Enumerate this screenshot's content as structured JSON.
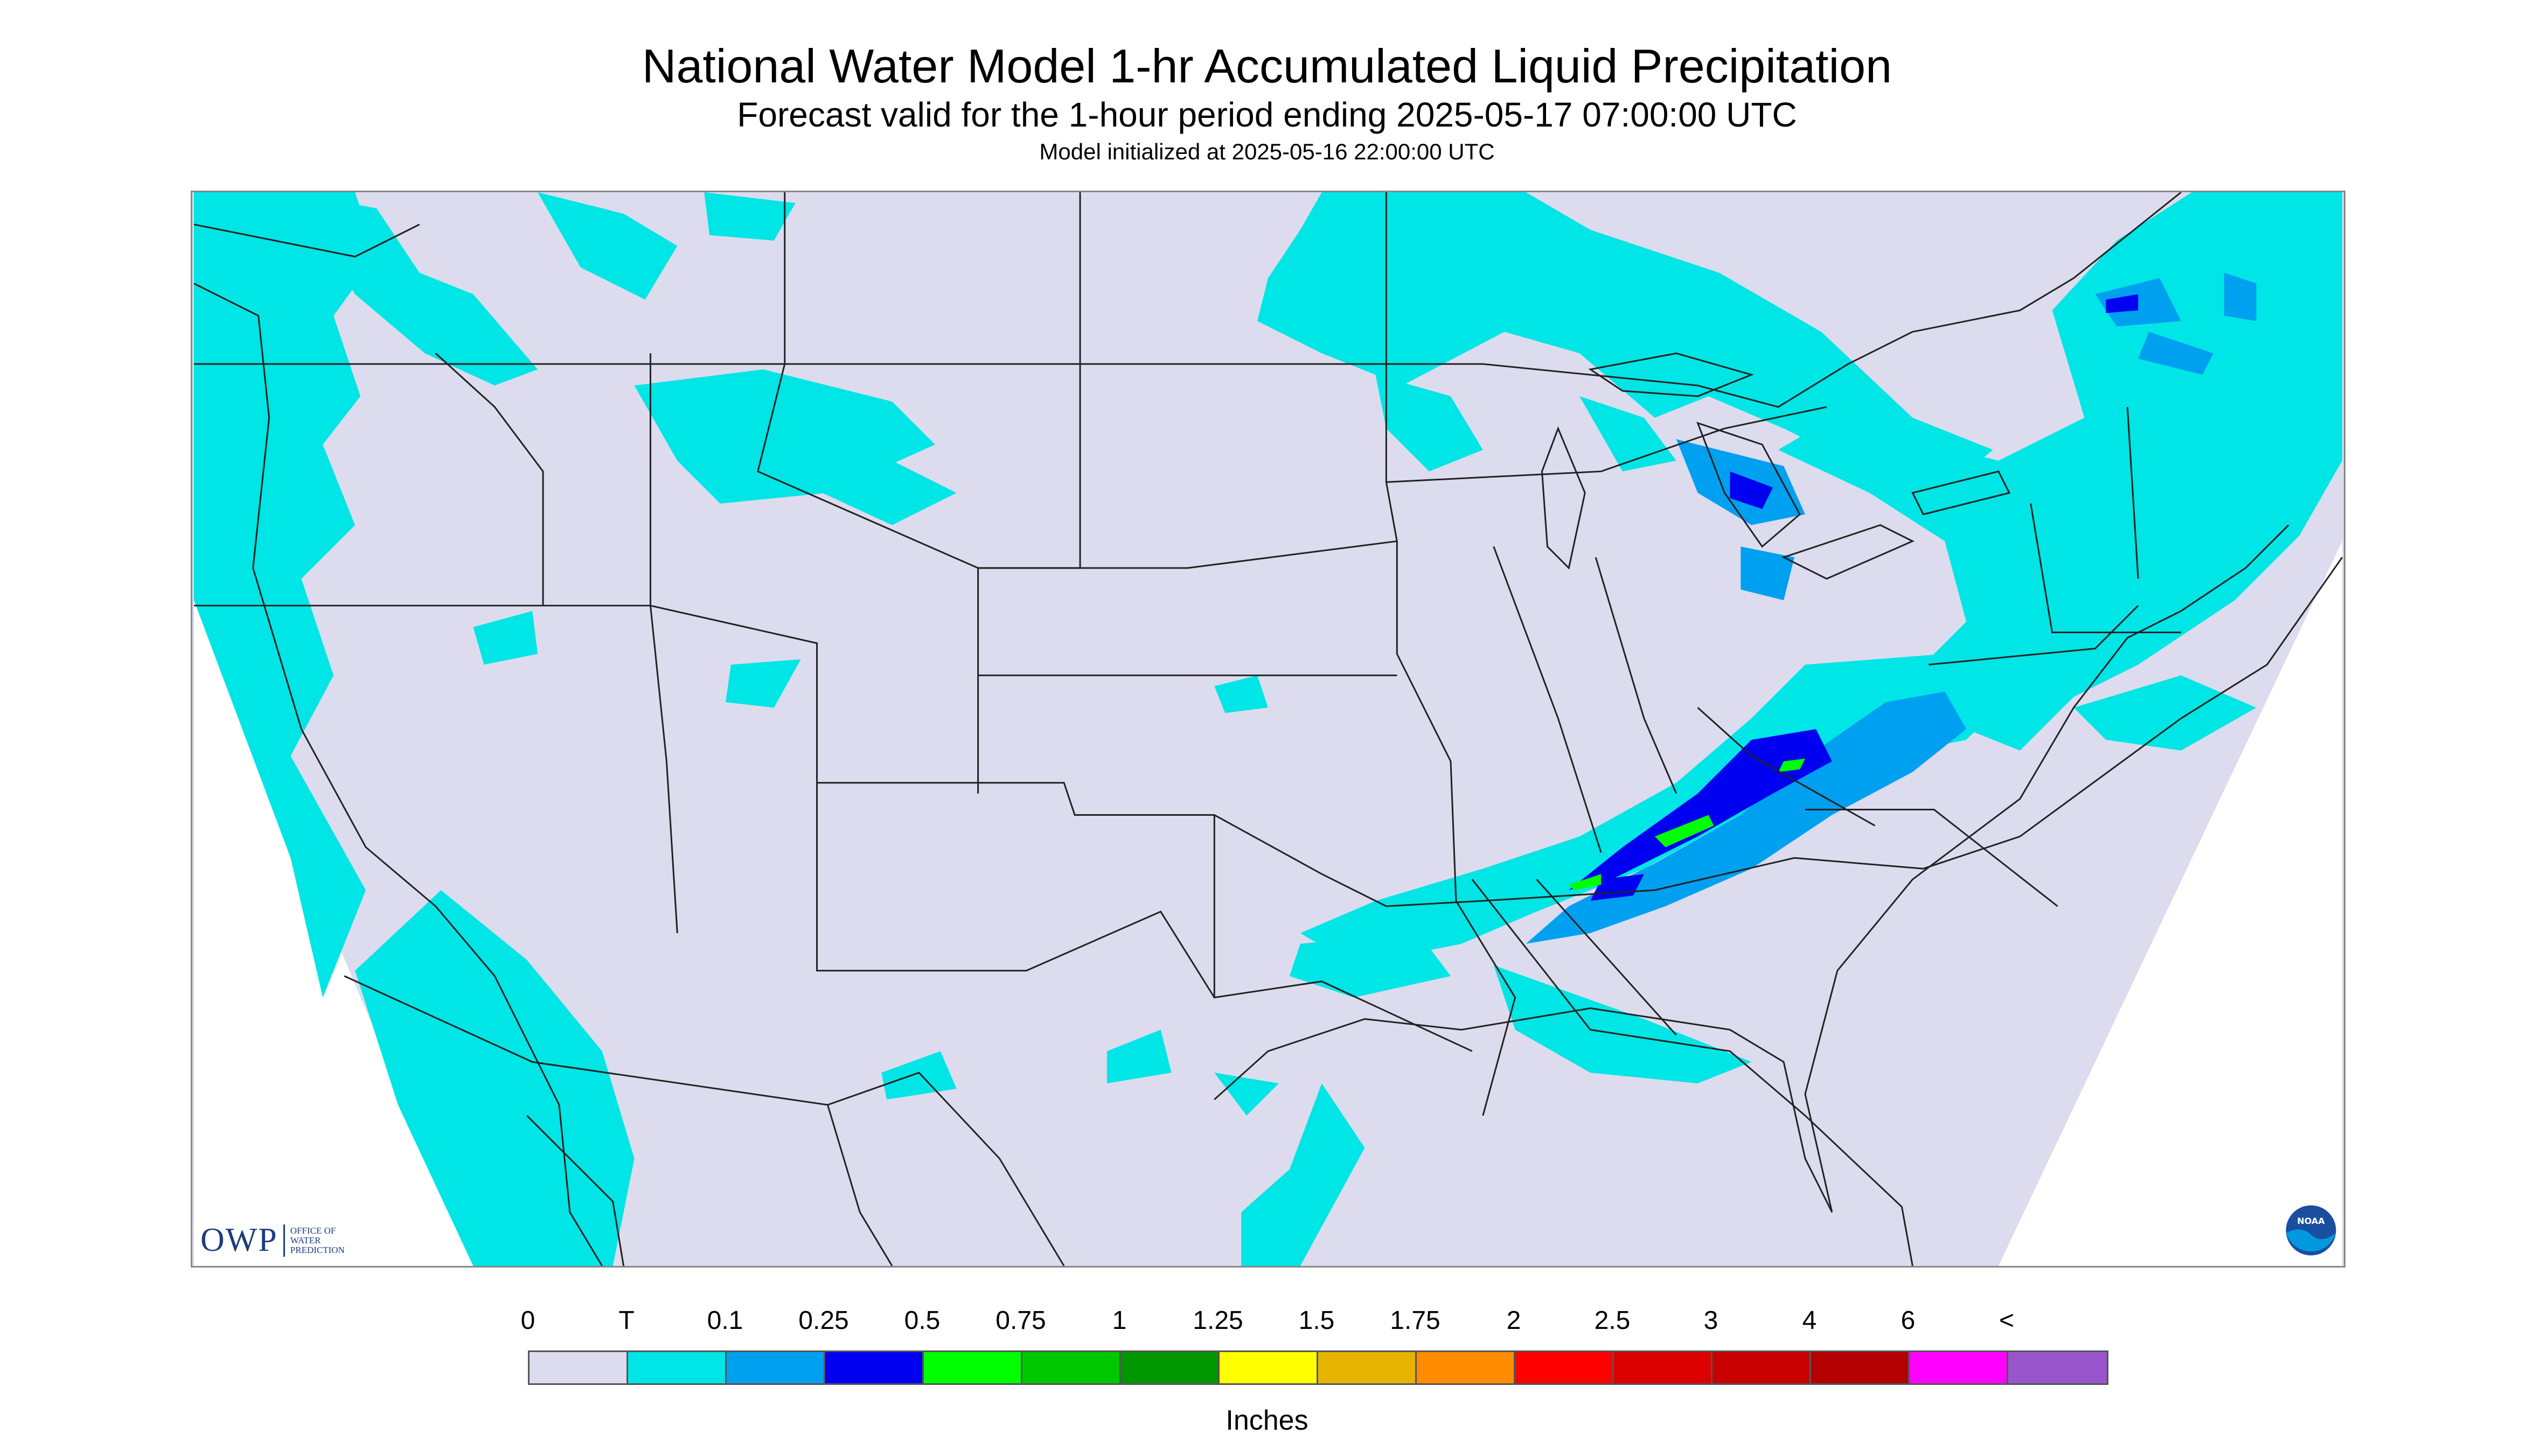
{
  "header": {
    "title": "National Water Model 1-hr Accumulated Liquid Precipitation",
    "subtitle": "Forecast valid for the 1-hour period ending 2025-05-17 07:00:00 UTC",
    "init": "Model initialized at 2025-05-16 22:00:00 UTC"
  },
  "logos": {
    "owp_mark": "OWP",
    "owp_text": "Office of Water Prediction",
    "noaa": "NOAA"
  },
  "legend": {
    "units": "Inches",
    "tick_labels": [
      "0",
      "T",
      "0.1",
      "0.25",
      "0.5",
      "0.75",
      "1",
      "1.25",
      "1.5",
      "1.75",
      "2",
      "2.5",
      "3",
      "4",
      "6",
      "<"
    ],
    "colors": [
      "#dcdcee",
      "#00e5e5",
      "#00a0f0",
      "#0000f0",
      "#00ff00",
      "#00c800",
      "#009600",
      "#ffff00",
      "#e6b400",
      "#ff8c00",
      "#ff0000",
      "#dc0000",
      "#c80000",
      "#b40000",
      "#ff00ff",
      "#9955cc"
    ]
  },
  "map": {
    "background_color": "#dcdcee",
    "outside_domain_color": "#ffffff",
    "border_color": "#888888",
    "boundary_color": "#222222"
  }
}
